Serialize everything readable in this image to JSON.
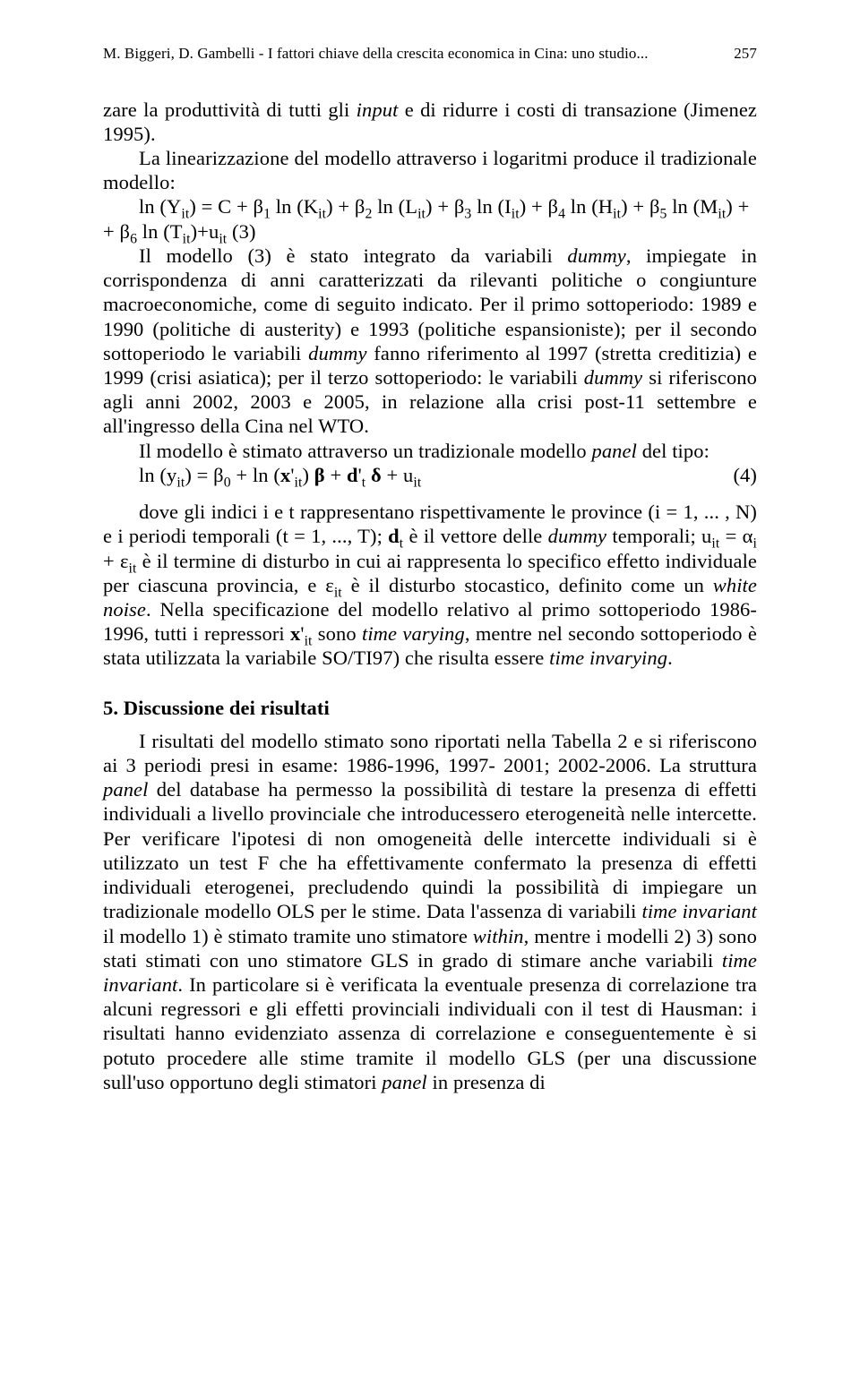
{
  "running_head": {
    "text": "M. Biggeri, D. Gambelli - I fattori chiave della crescita economica in Cina: uno studio...",
    "page_number": "257"
  },
  "p1": "zare la produttività di tutti gli ",
  "p1_i1": "input",
  "p1b": " e di ridurre i costi di transazione (Jimenez 1995).",
  "p2": "La linearizzazione del modello attraverso i logaritmi produce il tradizionale modello:",
  "eq3_line1_a": "ln (Y",
  "eq3_line1_b": ") = C + β",
  "eq3_line1_c": " ln (K",
  "eq3_line1_d": ") + β",
  "eq3_line1_e": " ln (L",
  "eq3_line1_f": ") + β",
  "eq3_line1_g": " ln (I",
  "eq3_line1_h": ") + β",
  "eq3_line1_i": " ln (H",
  "eq3_line1_j": ") + β",
  "eq3_line1_k": " ln (M",
  "eq3_line1_l": ") +",
  "eq3_line2_a": "+ β",
  "eq3_line2_b": " ln (T",
  "eq3_line2_c": ")+u",
  "eq3_num": "(3)",
  "sub_it": "it",
  "sub_1": "1",
  "sub_2": "2",
  "sub_3": "3",
  "sub_4": "4",
  "sub_5": "5",
  "sub_6": "6",
  "p3a": "Il modello (3) è stato integrato da variabili ",
  "p3a_i": "dummy",
  "p3b": ", impiegate in corrispondenza di anni caratterizzati da rilevanti politiche o congiunture macroeconomiche, come di seguito indicato. Per il primo sottoperiodo: 1989 e 1990 (politiche di austerity) e 1993 (politiche espansioniste); per il secondo sottoperiodo le variabili ",
  "p3b_i": "dummy",
  "p3c": " fanno riferimento al 1997 (stretta creditizia) e 1999 (crisi asiatica); per il terzo sottoperiodo: le variabili ",
  "p3c_i": "dummy",
  "p3d": " si riferiscono agli anni 2002, 2003 e 2005, in relazione alla crisi post-11 settembre e all'ingresso della Cina nel WTO.",
  "p4": "Il modello è stimato attraverso un tradizionale modello ",
  "p4_i": "panel",
  "p4b": " del tipo:",
  "eq4_a": "ln (y",
  "eq4_b": ") =  β",
  "eq4_c": " + ln (",
  "eq4_xb": "x",
  "eq4_d": "'",
  "eq4_e": ") ",
  "eq4_beta": "β",
  "eq4_f": " + ",
  "eq4_db": "d",
  "eq4_g": "'",
  "eq4_delta": " δ",
  "eq4_h": " + u",
  "eq4_num": "(4)",
  "sub_0": "0",
  "sub_t": "t",
  "p5a": "dove gli indici i e t rappresentano rispettivamente le province (i = 1, ... , N) e i periodi temporali (t = 1, ...,  T); ",
  "p5_db": "d",
  "p5b": " è il vettore delle ",
  "p5b_i": "dummy",
  "p5c": " temporali; u",
  "p5d": " = α",
  "sub_i": "i",
  "p5e": " + ε",
  "p5f": " è il termine di disturbo in cui ai  rappresenta lo specifico effetto individuale per ciascuna provincia, e ε",
  "p5g": " è il disturbo stocastico, definito come un ",
  "p5g_i": "white noise",
  "p5h": ". Nella specificazione del modello relativo al primo sottoperiodo 1986-1996, tutti i repressori ",
  "p5_xb": "x",
  "p5i": "'",
  "p5j": " sono ",
  "p5j_i": "time varying",
  "p5k": ", mentre nel secondo sottoperiodo è stata utilizzata la variabile SO/TI97) che risulta essere ",
  "p5k_i": "time invarying",
  "p5l": ".",
  "section5": "5. Discussione dei risultati",
  "p6a": "I risultati del modello stimato sono riportati nella Tabella 2 e si riferiscono ai 3 periodi presi in esame: 1986-1996, 1997- 2001; 2002-2006. La struttura ",
  "p6a_i": "panel",
  "p6b": " del database ha permesso la possibilità di testare la presenza di effetti individuali a livello provinciale che introducessero eterogeneità nelle intercette. Per verificare l'ipotesi di non omogeneità delle intercette individuali si è utilizzato un test F che ha effettivamente confermato la presenza di effetti individuali eterogenei, precludendo quindi la possibilità di impiegare un tradizionale modello OLS per le stime. Data l'assenza di variabili ",
  "p6b_i": "time invariant",
  "p6c": " il modello 1) è stimato tramite uno stimatore ",
  "p6c_i": "within",
  "p6d": ", mentre i modelli 2) 3) sono stati stimati con uno stimatore GLS in grado di stimare anche variabili ",
  "p6d_i": "time invariant",
  "p6e": ". In particolare si è verificata la eventuale presenza di correlazione tra alcuni regressori e gli effetti provinciali individuali con il test di Hausman: i risultati hanno evidenziato assenza di correlazione e conseguentemente è si potuto procedere alle stime tramite il modello GLS (per una discussione sull'uso opportuno degli stimatori ",
  "p6e_i": "panel",
  "p6f": " in presenza di"
}
